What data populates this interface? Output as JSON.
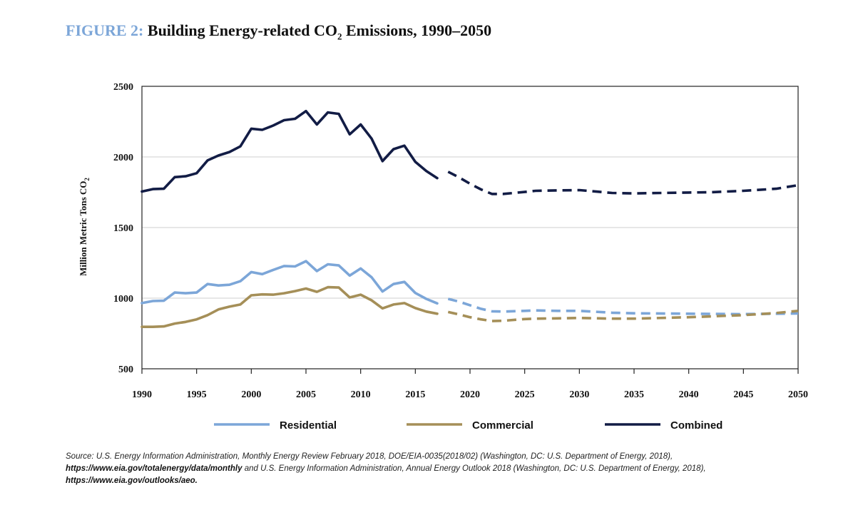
{
  "title": {
    "prefix": "FIGURE 2:",
    "main": "Building Energy-related CO",
    "subscript": "2",
    "suffix": "Emissions, 1990–2050"
  },
  "colors": {
    "residential": "#7ca6d8",
    "commercial": "#a58f58",
    "combined": "#121c45",
    "title_prefix": "#7ca6d8"
  },
  "source": {
    "part1": "Source: U.S. Energy Information Administration, Monthly Energy Review February 2018, DOE/EIA-0035(2018/02) (Washington, DC: U.S. Department of Energy, 2018),",
    "url1": "https://www.eia.gov/totalenergy/data/monthly",
    "part2": "and U.S. Energy Information Administration, Annual Energy Outlook 2018 (Washington, DC: U.S. Department of Energy, 2018),",
    "url2": "https://www.eia.gov/outlooks/aeo."
  },
  "chart_data": {
    "type": "line",
    "title": "",
    "xlabel": "",
    "ylabel": "Million Metric Tons CO",
    "ylabel_subscript": "2",
    "xlim": [
      1990,
      2050
    ],
    "ylim": [
      500,
      2500
    ],
    "x_ticks": [
      "1990",
      "1995",
      "2000",
      "2005",
      "2010",
      "2015",
      "2020",
      "2025",
      "2030",
      "2035",
      "2040",
      "2045",
      "2050"
    ],
    "y_ticks": [
      "500",
      "1000",
      "1500",
      "2000",
      "2500"
    ],
    "grid": "horizontal",
    "legend_position": "bottom",
    "historical_end_year": 2017,
    "series": [
      {
        "name": "Residential",
        "color": "#7ca6d8",
        "historical": [
          [
            1990,
            965
          ],
          [
            1991,
            980
          ],
          [
            1992,
            982
          ],
          [
            1993,
            1040
          ],
          [
            1994,
            1035
          ],
          [
            1995,
            1040
          ],
          [
            1996,
            1100
          ],
          [
            1997,
            1090
          ],
          [
            1998,
            1095
          ],
          [
            1999,
            1120
          ],
          [
            2000,
            1185
          ],
          [
            2001,
            1170
          ],
          [
            2002,
            1200
          ],
          [
            2003,
            1228
          ],
          [
            2004,
            1225
          ],
          [
            2005,
            1262
          ],
          [
            2006,
            1192
          ],
          [
            2007,
            1240
          ],
          [
            2008,
            1232
          ],
          [
            2009,
            1160
          ],
          [
            2010,
            1210
          ],
          [
            2011,
            1148
          ],
          [
            2012,
            1047
          ],
          [
            2013,
            1100
          ],
          [
            2014,
            1115
          ],
          [
            2015,
            1037
          ],
          [
            2016,
            995
          ],
          [
            2017,
            963
          ]
        ],
        "projected": [
          [
            2018,
            995
          ],
          [
            2019,
            975
          ],
          [
            2020,
            950
          ],
          [
            2021,
            925
          ],
          [
            2022,
            907
          ],
          [
            2023,
            905
          ],
          [
            2025,
            910
          ],
          [
            2026,
            913
          ],
          [
            2028,
            910
          ],
          [
            2030,
            910
          ],
          [
            2033,
            897
          ],
          [
            2035,
            893
          ],
          [
            2040,
            890
          ],
          [
            2045,
            887
          ],
          [
            2050,
            892
          ]
        ]
      },
      {
        "name": "Commercial",
        "color": "#a58f58",
        "historical": [
          [
            1990,
            797
          ],
          [
            1991,
            797
          ],
          [
            1992,
            800
          ],
          [
            1993,
            820
          ],
          [
            1994,
            832
          ],
          [
            1995,
            850
          ],
          [
            1996,
            880
          ],
          [
            1997,
            920
          ],
          [
            1998,
            940
          ],
          [
            1999,
            955
          ],
          [
            2000,
            1020
          ],
          [
            2001,
            1027
          ],
          [
            2002,
            1025
          ],
          [
            2003,
            1035
          ],
          [
            2004,
            1050
          ],
          [
            2005,
            1068
          ],
          [
            2006,
            1045
          ],
          [
            2007,
            1078
          ],
          [
            2008,
            1075
          ],
          [
            2009,
            1005
          ],
          [
            2010,
            1025
          ],
          [
            2011,
            985
          ],
          [
            2012,
            928
          ],
          [
            2013,
            955
          ],
          [
            2014,
            965
          ],
          [
            2015,
            930
          ],
          [
            2016,
            905
          ],
          [
            2017,
            890
          ]
        ],
        "projected": [
          [
            2018,
            902
          ],
          [
            2019,
            885
          ],
          [
            2020,
            865
          ],
          [
            2021,
            850
          ],
          [
            2022,
            838
          ],
          [
            2023,
            840
          ],
          [
            2025,
            852
          ],
          [
            2026,
            855
          ],
          [
            2028,
            857
          ],
          [
            2030,
            860
          ],
          [
            2033,
            855
          ],
          [
            2035,
            855
          ],
          [
            2040,
            865
          ],
          [
            2045,
            880
          ],
          [
            2048,
            895
          ],
          [
            2050,
            910
          ]
        ]
      },
      {
        "name": "Combined",
        "color": "#121c45",
        "historical": [
          [
            1990,
            1755
          ],
          [
            1991,
            1772
          ],
          [
            1992,
            1775
          ],
          [
            1993,
            1857
          ],
          [
            1994,
            1863
          ],
          [
            1995,
            1885
          ],
          [
            1996,
            1975
          ],
          [
            1997,
            2010
          ],
          [
            1998,
            2035
          ],
          [
            1999,
            2075
          ],
          [
            2000,
            2200
          ],
          [
            2001,
            2192
          ],
          [
            2002,
            2222
          ],
          [
            2003,
            2260
          ],
          [
            2004,
            2270
          ],
          [
            2005,
            2325
          ],
          [
            2006,
            2230
          ],
          [
            2007,
            2315
          ],
          [
            2008,
            2305
          ],
          [
            2009,
            2160
          ],
          [
            2010,
            2230
          ],
          [
            2011,
            2130
          ],
          [
            2012,
            1970
          ],
          [
            2013,
            2055
          ],
          [
            2014,
            2080
          ],
          [
            2015,
            1965
          ],
          [
            2016,
            1900
          ],
          [
            2017,
            1850
          ]
        ],
        "projected": [
          [
            2018,
            1895
          ],
          [
            2019,
            1855
          ],
          [
            2020,
            1810
          ],
          [
            2021,
            1770
          ],
          [
            2022,
            1738
          ],
          [
            2023,
            1738
          ],
          [
            2025,
            1752
          ],
          [
            2026,
            1760
          ],
          [
            2028,
            1763
          ],
          [
            2030,
            1765
          ],
          [
            2033,
            1745
          ],
          [
            2035,
            1742
          ],
          [
            2040,
            1748
          ],
          [
            2042,
            1750
          ],
          [
            2045,
            1760
          ],
          [
            2048,
            1775
          ],
          [
            2050,
            1800
          ]
        ]
      }
    ]
  }
}
